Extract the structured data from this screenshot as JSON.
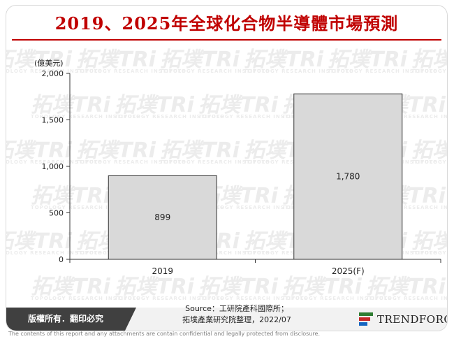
{
  "title": "2019、2025年全球化合物半導體市場預測",
  "watermark": {
    "brand": "拓墣TRi",
    "sub": "TOPOLOGY RESEARCH INSTITUTE"
  },
  "chart_data": {
    "type": "bar",
    "unit_label": "(億美元)",
    "categories": [
      "2019",
      "2025(F)"
    ],
    "values": [
      899,
      1780
    ],
    "data_labels": [
      "899",
      "1,780"
    ],
    "ylim": [
      0,
      2000
    ],
    "yticks": [
      0,
      500,
      1000,
      1500,
      2000
    ],
    "ytick_labels": [
      "0",
      "500",
      "1,000",
      "1,500",
      "2,000"
    ],
    "grid": false,
    "bar_color": "#d9d9d9",
    "bar_edge_color": "#333333"
  },
  "footer": {
    "rights": "版權所有．翻印必究",
    "source_line1": "Source：工研院產科國際所；",
    "source_line2": "拓墣產業研究院整理，2022/07",
    "logo_text": "TRENDFORCE",
    "logo_colors": [
      "#2e7d32",
      "#c62828",
      "#1565c0"
    ]
  },
  "disclaimer": "The contents of this report and any attachments are contain confidential and legally protected from disclosure."
}
